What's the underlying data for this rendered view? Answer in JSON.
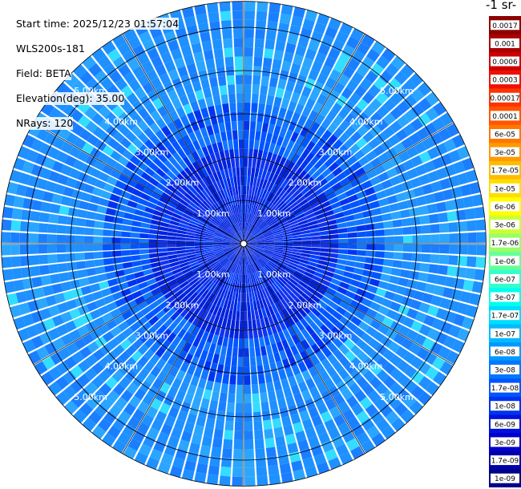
{
  "info": {
    "start_time": "Start time: 2025/12/23 01:57:04",
    "instrument": "WLS200s-181",
    "field": "Field: BETA",
    "elevation": "Elevation(deg): 35.00",
    "nrays": "NRays: 120"
  },
  "colorbar": {
    "title": "-1 sr-",
    "labels": [
      "0.0017",
      "0.001",
      "0.0006",
      "0.0003",
      "0.00017",
      "0.0001",
      "6e-05",
      "3e-05",
      "1.7e-05",
      "1e-05",
      "6e-06",
      "3e-06",
      "1.7e-06",
      "1e-06",
      "6e-07",
      "3e-07",
      "1.7e-07",
      "1e-07",
      "6e-08",
      "3e-08",
      "1.7e-08",
      "1e-08",
      "6e-09",
      "3e-09",
      "1.7e-09",
      "1e-09"
    ],
    "colors": [
      "#8b0000",
      "#aa0000",
      "#cc0000",
      "#ee1100",
      "#ff3300",
      "#ff5500",
      "#ff7700",
      "#ff9900",
      "#ffbb00",
      "#ffdd00",
      "#ffff00",
      "#ccff33",
      "#99ff66",
      "#66ff99",
      "#33ffcc",
      "#00ffee",
      "#00ddff",
      "#00bbff",
      "#0099ff",
      "#0077ff",
      "#0055ff",
      "#0033ee",
      "#0011dd",
      "#0000cc",
      "#0000aa",
      "#000088"
    ]
  },
  "chart_data": {
    "type": "heatmap",
    "subtype": "polar PPI scan",
    "field": "BETA",
    "elevation_deg": 35.0,
    "n_rays": 120,
    "range_rings_km": [
      1.0,
      2.0,
      3.0,
      4.0,
      5.0
    ],
    "ring_label_texts": [
      "1.00km",
      "2.00km",
      "3.00km",
      "4.00km",
      "5.00km"
    ],
    "max_range_km": 5.6,
    "azimuth_spokes_deg": [
      0,
      30,
      60,
      90,
      120,
      150,
      180,
      210,
      240,
      270,
      300,
      330
    ],
    "dominant_color_category": "1e-07 to 1e-08",
    "near_field_color_category": "1e-08 to 1e-09"
  }
}
